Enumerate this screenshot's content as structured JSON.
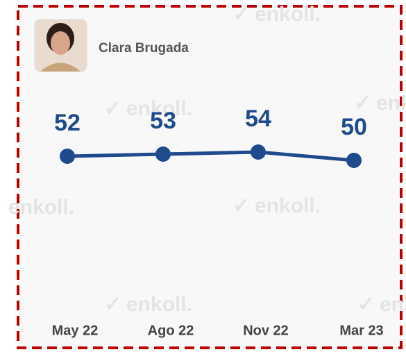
{
  "chart_data": {
    "type": "line",
    "title": "Clara Brugada",
    "watermark": "enkoll.",
    "categories": [
      "May 22",
      "Ago 22",
      "Nov 22",
      "Mar 23"
    ],
    "values": [
      52,
      53,
      54,
      50
    ],
    "color": "#1f4a8c",
    "ylim": [
      40,
      60
    ]
  }
}
